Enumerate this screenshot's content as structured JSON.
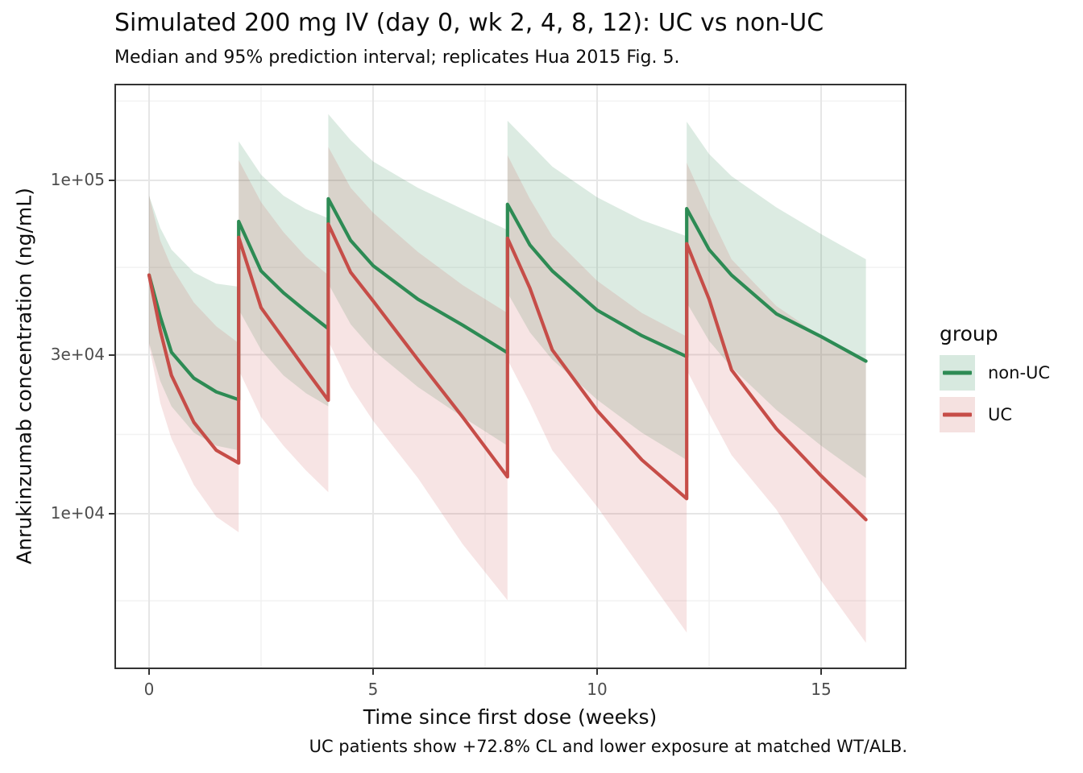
{
  "title": "Simulated 200 mg IV (day 0, wk 2, 4, 8, 12): UC vs non-UC",
  "subtitle": "Median and 95% prediction interval; replicates Hua 2015 Fig. 5.",
  "caption": "UC patients show +72.8% CL and lower exposure at matched WT/ALB.",
  "legend": {
    "title": "group",
    "items": [
      {
        "label": "non-UC",
        "line_color": "#2d8b54",
        "fill_color": "#2d8b54",
        "fill_alpha": 0.17
      },
      {
        "label": "UC",
        "line_color": "#c64d48",
        "fill_color": "#c64d48",
        "fill_alpha": 0.15
      }
    ]
  },
  "colors": {
    "grid_major": "#e6e6e6",
    "grid_minor": "#f2f2f2",
    "panel_border": "#333333",
    "tick_label": "#4d4d4d",
    "text": "#0d0d0d"
  },
  "chart_data": {
    "type": "line",
    "title": "Simulated 200 mg IV (day 0, wk 2, 4, 8, 12): UC vs non-UC",
    "subtitle": "Median and 95% prediction interval; replicates Hua 2015 Fig. 5.",
    "caption": "UC patients show +72.8% CL and lower exposure at matched WT/ALB.",
    "xlabel": "Time since first dose (weeks)",
    "ylabel": "Anrukinzumab concentration (ng/mL)",
    "x_scale": "linear",
    "y_scale": "log10",
    "xlim": [
      -0.77,
      16.9
    ],
    "ylim": [
      3200,
      196000
    ],
    "x_ticks": {
      "values": [
        0,
        5,
        10,
        15
      ],
      "labels": [
        "0",
        "5",
        "10",
        "15"
      ]
    },
    "x_minor_ticks": [
      2.5,
      7.5,
      12.5
    ],
    "y_ticks": {
      "values": [
        10000,
        30000,
        100000
      ],
      "labels": [
        "1e+04",
        "3e+04",
        "1e+05"
      ]
    },
    "y_minor_ticks": [
      5480,
      17300,
      54800,
      173000
    ],
    "grid": true,
    "legend_position": "right",
    "dose_mg": 200,
    "dose_weeks": [
      0,
      2,
      4,
      8,
      12
    ],
    "ribbon": "95% prediction interval",
    "series": [
      {
        "name": "non-UC",
        "t": [
          0,
          0.25,
          0.5,
          1,
          1.5,
          2,
          2,
          2.5,
          3,
          3.5,
          4,
          4,
          4.5,
          5,
          6,
          7,
          8,
          8,
          8.5,
          9,
          10,
          11,
          12,
          12,
          12.5,
          13,
          14,
          15,
          16
        ],
        "median": [
          52000,
          39000,
          30500,
          25500,
          23200,
          22000,
          75300,
          53500,
          46000,
          40500,
          35900,
          88100,
          66000,
          55500,
          44000,
          36800,
          30400,
          84800,
          64000,
          53500,
          40800,
          34200,
          29600,
          82300,
          62000,
          52000,
          39800,
          34000,
          28700
        ],
        "lo": [
          32500,
          25000,
          21000,
          17500,
          16000,
          15500,
          41000,
          31000,
          26000,
          23000,
          21000,
          49000,
          37000,
          31000,
          24000,
          19500,
          16000,
          46000,
          35000,
          29000,
          22000,
          17500,
          14500,
          43000,
          33000,
          27500,
          20500,
          16000,
          12800
        ],
        "hi": [
          90000,
          72000,
          62000,
          53000,
          49000,
          48000,
          131000,
          104000,
          90000,
          82000,
          77000,
          158000,
          132000,
          114000,
          95000,
          82000,
          71000,
          151000,
          129000,
          110000,
          89000,
          76000,
          68000,
          150000,
          120000,
          103000,
          83000,
          69000,
          58000
        ]
      },
      {
        "name": "UC",
        "t": [
          0,
          0.25,
          0.5,
          1,
          1.5,
          2,
          2,
          2.5,
          3,
          3.5,
          4,
          4,
          4.5,
          5,
          6,
          7,
          8,
          8,
          8.5,
          9,
          10,
          11,
          12,
          12,
          12.5,
          13,
          14,
          15,
          16
        ],
        "median": [
          52000,
          35500,
          26000,
          18800,
          15500,
          14200,
          67500,
          41500,
          33500,
          27000,
          21900,
          74000,
          53000,
          43500,
          29000,
          19500,
          12900,
          67100,
          47500,
          31000,
          20400,
          14500,
          11100,
          64600,
          44000,
          27000,
          18000,
          13000,
          9600
        ],
        "lo": [
          32000,
          21500,
          16800,
          12200,
          9800,
          8800,
          27000,
          19500,
          16000,
          13500,
          11600,
          33000,
          24000,
          19000,
          12800,
          8100,
          5500,
          29000,
          21500,
          15500,
          10500,
          6800,
          4400,
          27000,
          20000,
          15000,
          10300,
          6300,
          4100
        ],
        "hi": [
          90000,
          66000,
          55000,
          43000,
          36500,
          32500,
          115000,
          86000,
          70000,
          59000,
          52000,
          126000,
          95000,
          80000,
          61000,
          48500,
          40000,
          119000,
          88000,
          68000,
          50000,
          40000,
          34000,
          113000,
          80000,
          58000,
          42000,
          34000,
          29000
        ]
      }
    ]
  }
}
